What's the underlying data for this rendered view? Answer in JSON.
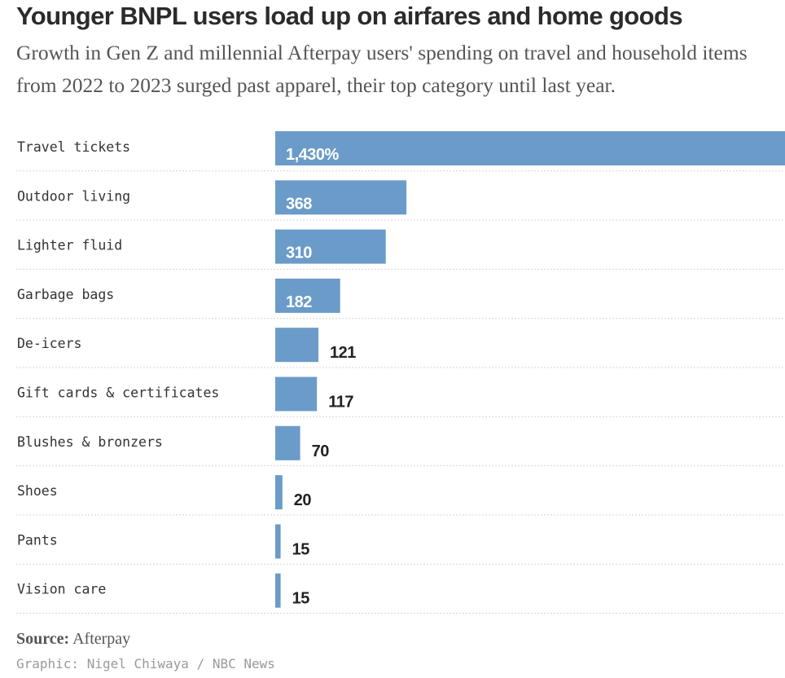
{
  "chart_data": {
    "type": "bar",
    "orientation": "horizontal",
    "title": "Younger BNPL users load up on airfares and home goods",
    "subtitle": "Growth in Gen Z and millennial Afterpay users' spending on travel and household items from 2022 to 2023 surged past apparel, their top category until last year.",
    "categories": [
      "Travel tickets",
      "Outdoor living",
      "Lighter fluid",
      "Garbage bags",
      "De-icers",
      "Gift cards & certificates",
      "Blushes & bronzers",
      "Shoes",
      "Pants",
      "Vision care"
    ],
    "values": [
      1430,
      368,
      310,
      182,
      121,
      117,
      70,
      20,
      15,
      15
    ],
    "value_labels": [
      "1,430%",
      "368",
      "310",
      "182",
      "121",
      "117",
      "70",
      "20",
      "15",
      "15"
    ],
    "xlim": [
      0,
      1430
    ],
    "grid": false,
    "bar_color": "#6b9bc8"
  },
  "source": {
    "label": "Source:",
    "text": "Afterpay"
  },
  "credit": "Graphic: Nigel Chiwaya / NBC News"
}
